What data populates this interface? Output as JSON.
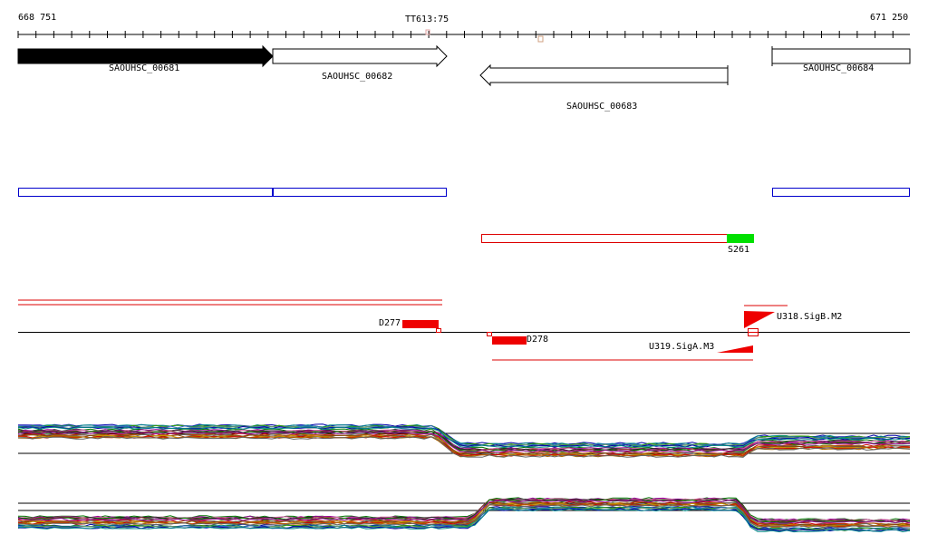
{
  "ruler": {
    "start_label": "668 751",
    "end_label": "671 250",
    "marker_label": "TT613:75"
  },
  "genes": [
    {
      "name": "SAOUHSC_00681",
      "strand": "+",
      "style": "filled"
    },
    {
      "name": "SAOUHSC_00682",
      "strand": "+",
      "style": "open"
    },
    {
      "name": "SAOUHSC_00683",
      "strand": "-",
      "style": "open"
    },
    {
      "name": "SAOUHSC_00684",
      "strand": "+",
      "style": "open"
    }
  ],
  "features": {
    "s_label": "S261",
    "d277_label": "D277",
    "d278_label": "D278",
    "sigb_label": "U318.SigB.M2",
    "siga_label": "U319.SigA.M3"
  },
  "colors": {
    "gene_fill": "#000000",
    "annotation_box": "#0000cc",
    "segment_red": "#dd0000",
    "segment_green": "#00e000"
  },
  "expression_tracks": [
    {
      "id": "track-top"
    },
    {
      "id": "track-bottom"
    }
  ]
}
